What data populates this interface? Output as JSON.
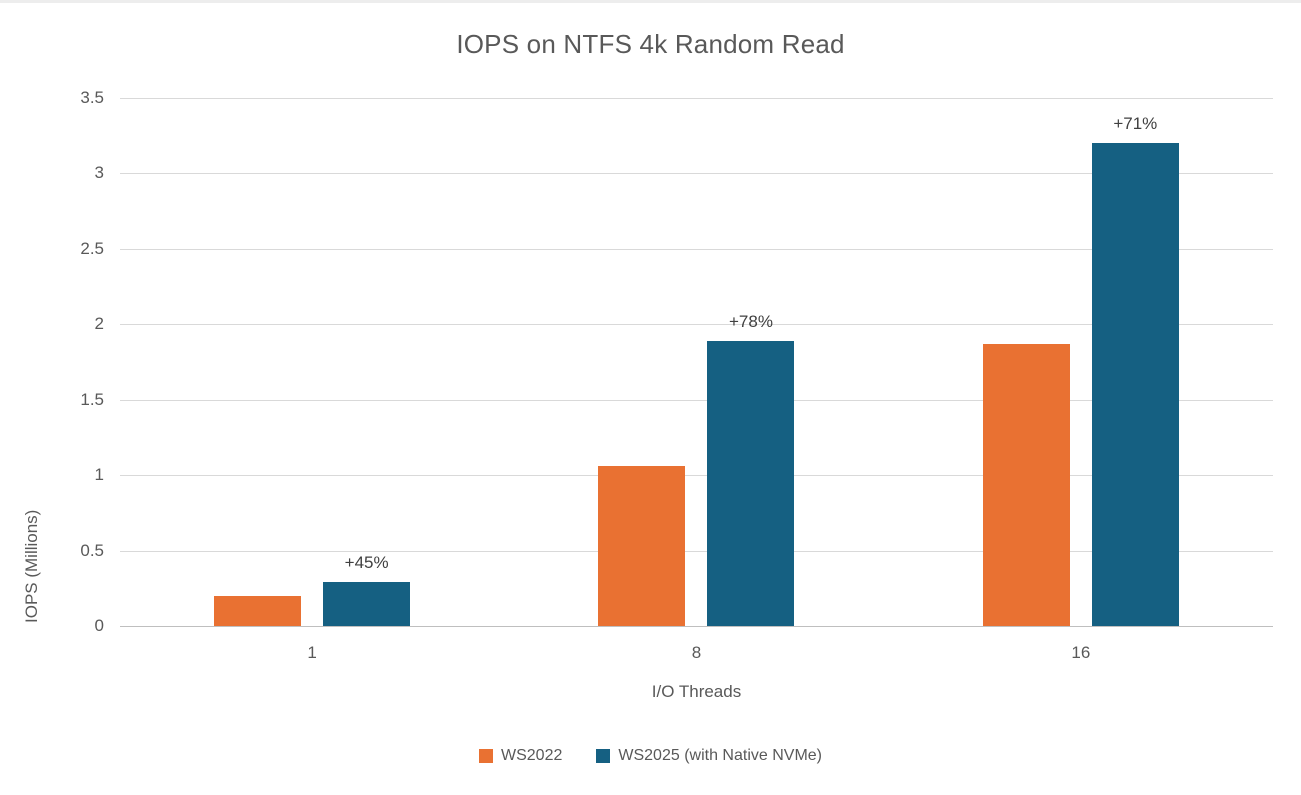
{
  "chart_data": {
    "type": "bar",
    "title": "IOPS on NTFS 4k Random Read",
    "xlabel": "I/O Threads",
    "ylabel": "IOPS (Millions)",
    "categories": [
      "1",
      "8",
      "16"
    ],
    "series": [
      {
        "name": "WS2022",
        "color": "#E97132",
        "values": [
          0.2,
          1.06,
          1.87
        ]
      },
      {
        "name": "WS2025 (with Native NVMe)",
        "color": "#156082",
        "values": [
          0.29,
          1.89,
          3.2
        ],
        "labels": [
          "+45%",
          "+78%",
          "+71%"
        ]
      }
    ],
    "ylim": [
      0,
      3.5
    ],
    "ytick_step": 0.5,
    "ytick_labels": [
      "0",
      "0.5",
      "1",
      "1.5",
      "2",
      "2.5",
      "3",
      "3.5"
    ],
    "grid": true,
    "legend_position": "bottom"
  },
  "colors": {
    "series_ws2022": "#E97132",
    "series_ws2025": "#156082",
    "title_text": "#595959",
    "axis_text": "#595959",
    "annotation_text": "#404040",
    "gridline": "#D9D9D9",
    "axis_line": "#BFBFBF",
    "background": "#FFFFFF"
  }
}
